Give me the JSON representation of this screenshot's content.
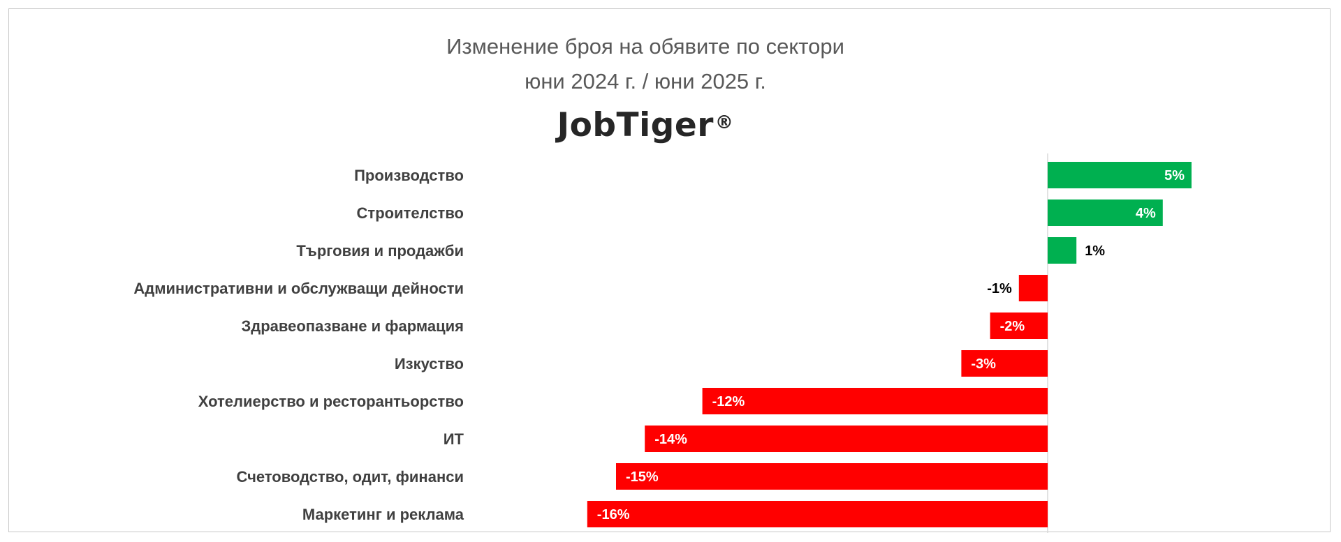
{
  "chart_data": {
    "type": "bar",
    "orientation": "horizontal",
    "title": "Изменение броя на обявите по сектори",
    "subtitle": "юни 2024 г. / юни 2025 г.",
    "brand": "JobTiger",
    "brand_mark": "®",
    "categories": [
      "Производство",
      "Строителство",
      "Търговия и продажби",
      "Административни и обслужващи дейности",
      "Здравеопазване и фармация",
      "Изкуство",
      "Хотелиерство и ресторантьорство",
      "ИТ",
      "Счетоводство, одит, финанси",
      "Маркетинг и реклама"
    ],
    "values": [
      5,
      4,
      1,
      -1,
      -2,
      -3,
      -12,
      -14,
      -15,
      -16
    ],
    "data_labels": [
      "5%",
      "4%",
      "1%",
      "-1%",
      "-2%",
      "-3%",
      "-12%",
      "-14%",
      "-15%",
      "-16%"
    ],
    "value_unit": "%",
    "xlim": [
      -16,
      5
    ],
    "grid": false,
    "legend": "none",
    "colors": {
      "positive": "#00b050",
      "negative": "#ff0000",
      "label_dark": "#000000",
      "label_light": "#ffffff",
      "axis": "#d9d9d9"
    }
  }
}
